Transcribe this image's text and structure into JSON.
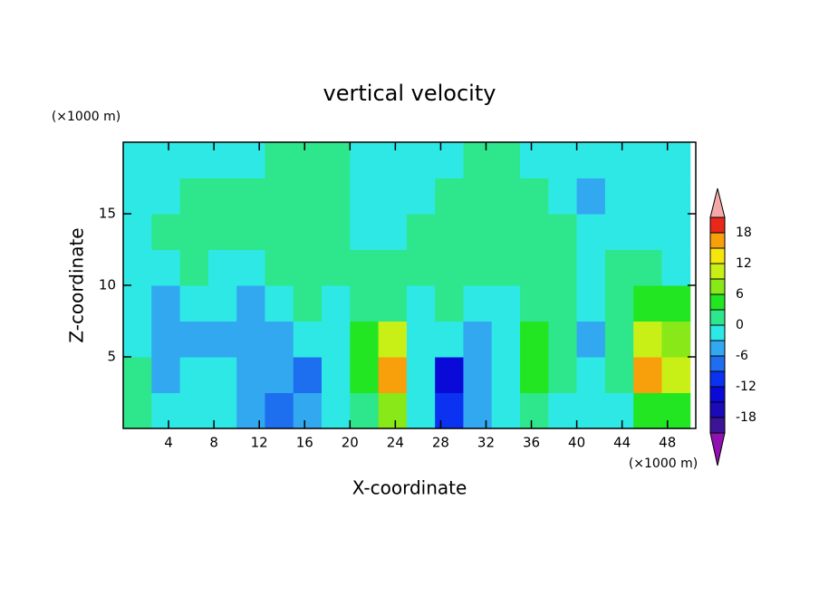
{
  "chart_data": {
    "type": "contour",
    "title": "vertical velocity",
    "xlabel": "X-coordinate",
    "ylabel": "Z-coordinate",
    "x_unit": "(×1000 m)",
    "y_unit": "(×1000 m)",
    "xlim": [
      0,
      50.5
    ],
    "ylim": [
      0,
      20
    ],
    "xticks": [
      4,
      8,
      12,
      16,
      20,
      24,
      28,
      32,
      36,
      40,
      44,
      48
    ],
    "yticks": [
      5,
      10,
      15
    ],
    "x": [
      1.25,
      3.75,
      6.25,
      8.75,
      11.25,
      13.75,
      16.25,
      18.75,
      21.25,
      23.75,
      26.25,
      28.75,
      31.25,
      33.75,
      36.25,
      38.75,
      41.25,
      43.75,
      46.25,
      48.75
    ],
    "y": [
      1.25,
      3.75,
      6.25,
      8.75,
      11.25,
      13.75,
      16.25,
      18.75
    ],
    "z": [
      [
        1,
        -1,
        -1,
        -1,
        -4,
        -7,
        -4,
        -1,
        2,
        7,
        -1,
        -11,
        -4,
        -1,
        1,
        -1,
        -1,
        -1,
        4,
        4
      ],
      [
        1,
        -4,
        -1,
        -1,
        -4,
        -4,
        -7,
        -1,
        4,
        16,
        -1,
        -14,
        -4,
        -1,
        4,
        1,
        -1,
        1,
        16,
        10
      ],
      [
        -1,
        -4,
        -4,
        -4,
        -4,
        -4,
        -1,
        -1,
        4,
        10,
        -1,
        -1,
        -4,
        -1,
        4,
        1,
        -4,
        1,
        10,
        7
      ],
      [
        -1,
        -4,
        -1,
        -1,
        -4,
        -1,
        1,
        -1,
        1,
        2,
        -1,
        1,
        -1,
        -1,
        1,
        1,
        -1,
        1,
        4,
        4
      ],
      [
        -1,
        -1,
        1,
        -1,
        -1,
        1,
        1,
        1,
        1,
        1,
        1,
        1,
        1,
        1,
        1,
        1,
        -1,
        1,
        1,
        -1
      ],
      [
        -1,
        1,
        1,
        1,
        1,
        1,
        1,
        1,
        -1,
        -1,
        1,
        1,
        1,
        1,
        1,
        1,
        -1,
        -1,
        -1,
        -1
      ],
      [
        -1,
        -1,
        1,
        1,
        1,
        1,
        1,
        1,
        -1,
        -1,
        -1,
        1,
        1,
        1,
        1,
        -1,
        -4,
        -1,
        -1,
        -1
      ],
      [
        -1,
        -1,
        -1,
        -1,
        -1,
        1,
        1,
        1,
        -1,
        -1,
        -1,
        -1,
        1,
        1,
        -1,
        -1,
        -1,
        -1,
        -1,
        -1
      ]
    ],
    "levels": [
      -21,
      -18,
      -15,
      -12,
      -9,
      -6,
      -3,
      0,
      3,
      6,
      9,
      12,
      15,
      18,
      21
    ],
    "colors": [
      "#9010b0",
      "#3c1496",
      "#1a0ab8",
      "#0a0ad8",
      "#0a32f0",
      "#1e6ef0",
      "#32a8f0",
      "#2ee8e6",
      "#2ee68c",
      "#22e622",
      "#88e818",
      "#c8f016",
      "#f5e60c",
      "#f7a00c",
      "#e8281a",
      "#f4a8a8"
    ],
    "colorbar_ticks": [
      -18,
      -12,
      -6,
      0,
      6,
      12,
      18
    ]
  }
}
